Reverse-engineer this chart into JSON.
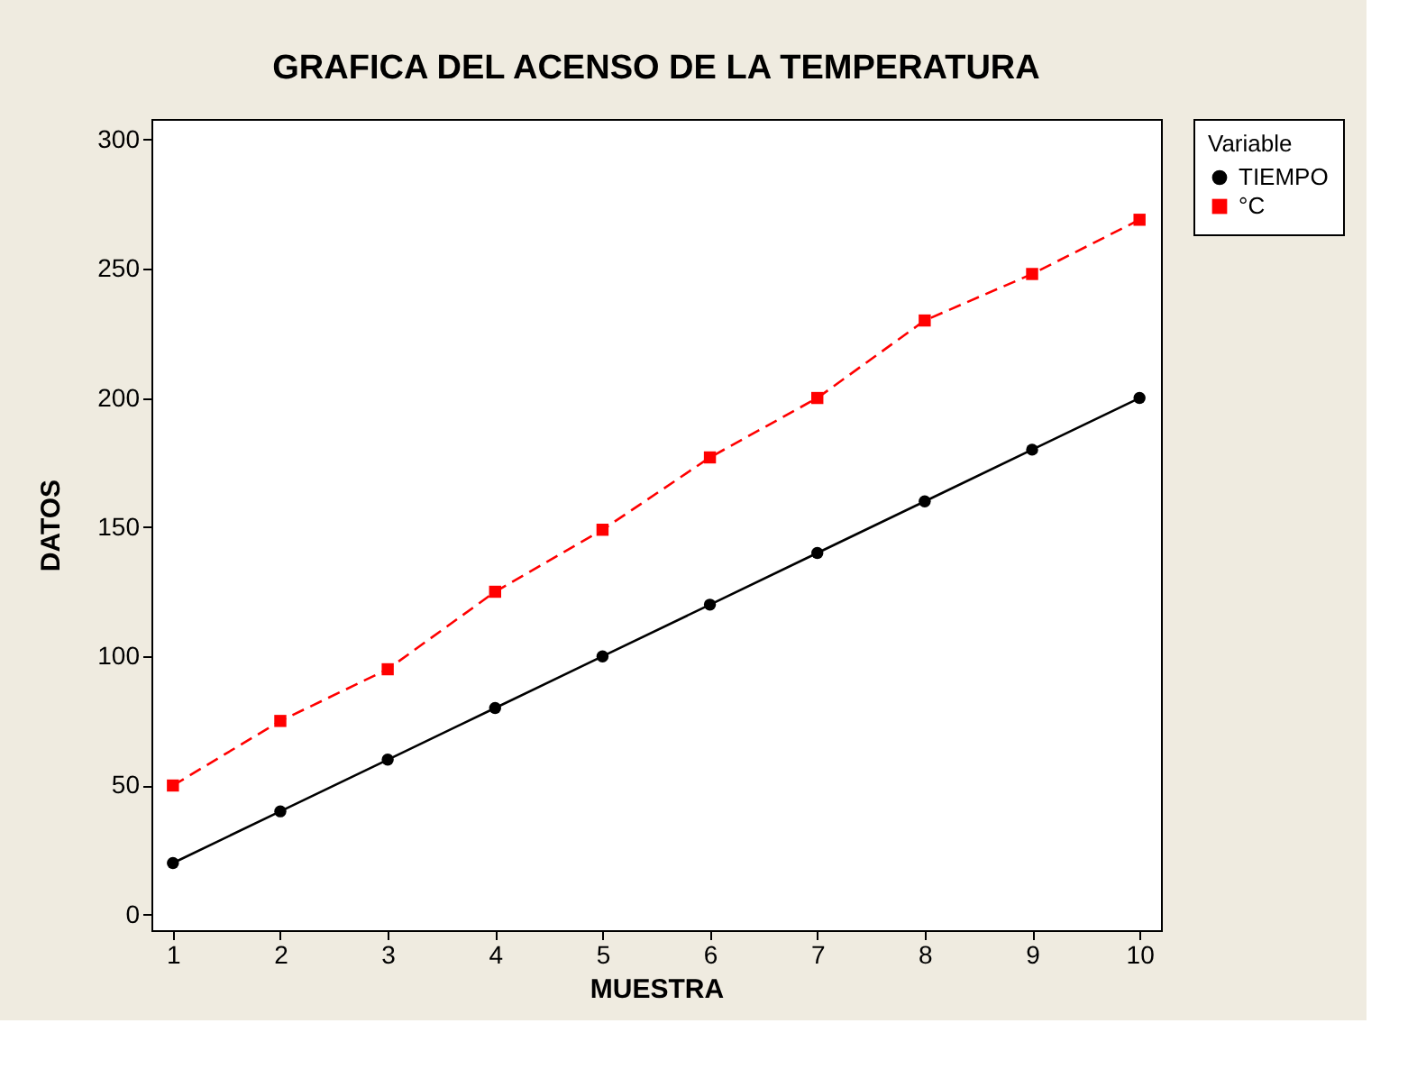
{
  "chart_data": {
    "type": "line",
    "title": "GRAFICA DEL ACENSO DE LA TEMPERATURA",
    "xlabel": "MUESTRA",
    "ylabel": "DATOS",
    "legend_title": "Variable",
    "legend": "top right",
    "grid": false,
    "x": [
      1,
      2,
      3,
      4,
      5,
      6,
      7,
      8,
      9,
      10
    ],
    "series": [
      {
        "name": "TIEMPO",
        "color": "#000000",
        "marker": "circle",
        "line_style": "solid",
        "values": [
          20,
          40,
          60,
          80,
          100,
          120,
          140,
          160,
          180,
          200
        ]
      },
      {
        "name": "°C",
        "color": "#ff0000",
        "marker": "square",
        "line_style": "dashed",
        "values": [
          50,
          75,
          95,
          125,
          149,
          177,
          200,
          230,
          248,
          269
        ]
      }
    ],
    "xlim": [
      0.8,
      10.2
    ],
    "xticks": [
      1,
      2,
      3,
      4,
      5,
      6,
      7,
      8,
      9,
      10
    ],
    "ylim": [
      -6,
      308
    ],
    "yticks": [
      0,
      50,
      100,
      150,
      200,
      250,
      300
    ]
  }
}
